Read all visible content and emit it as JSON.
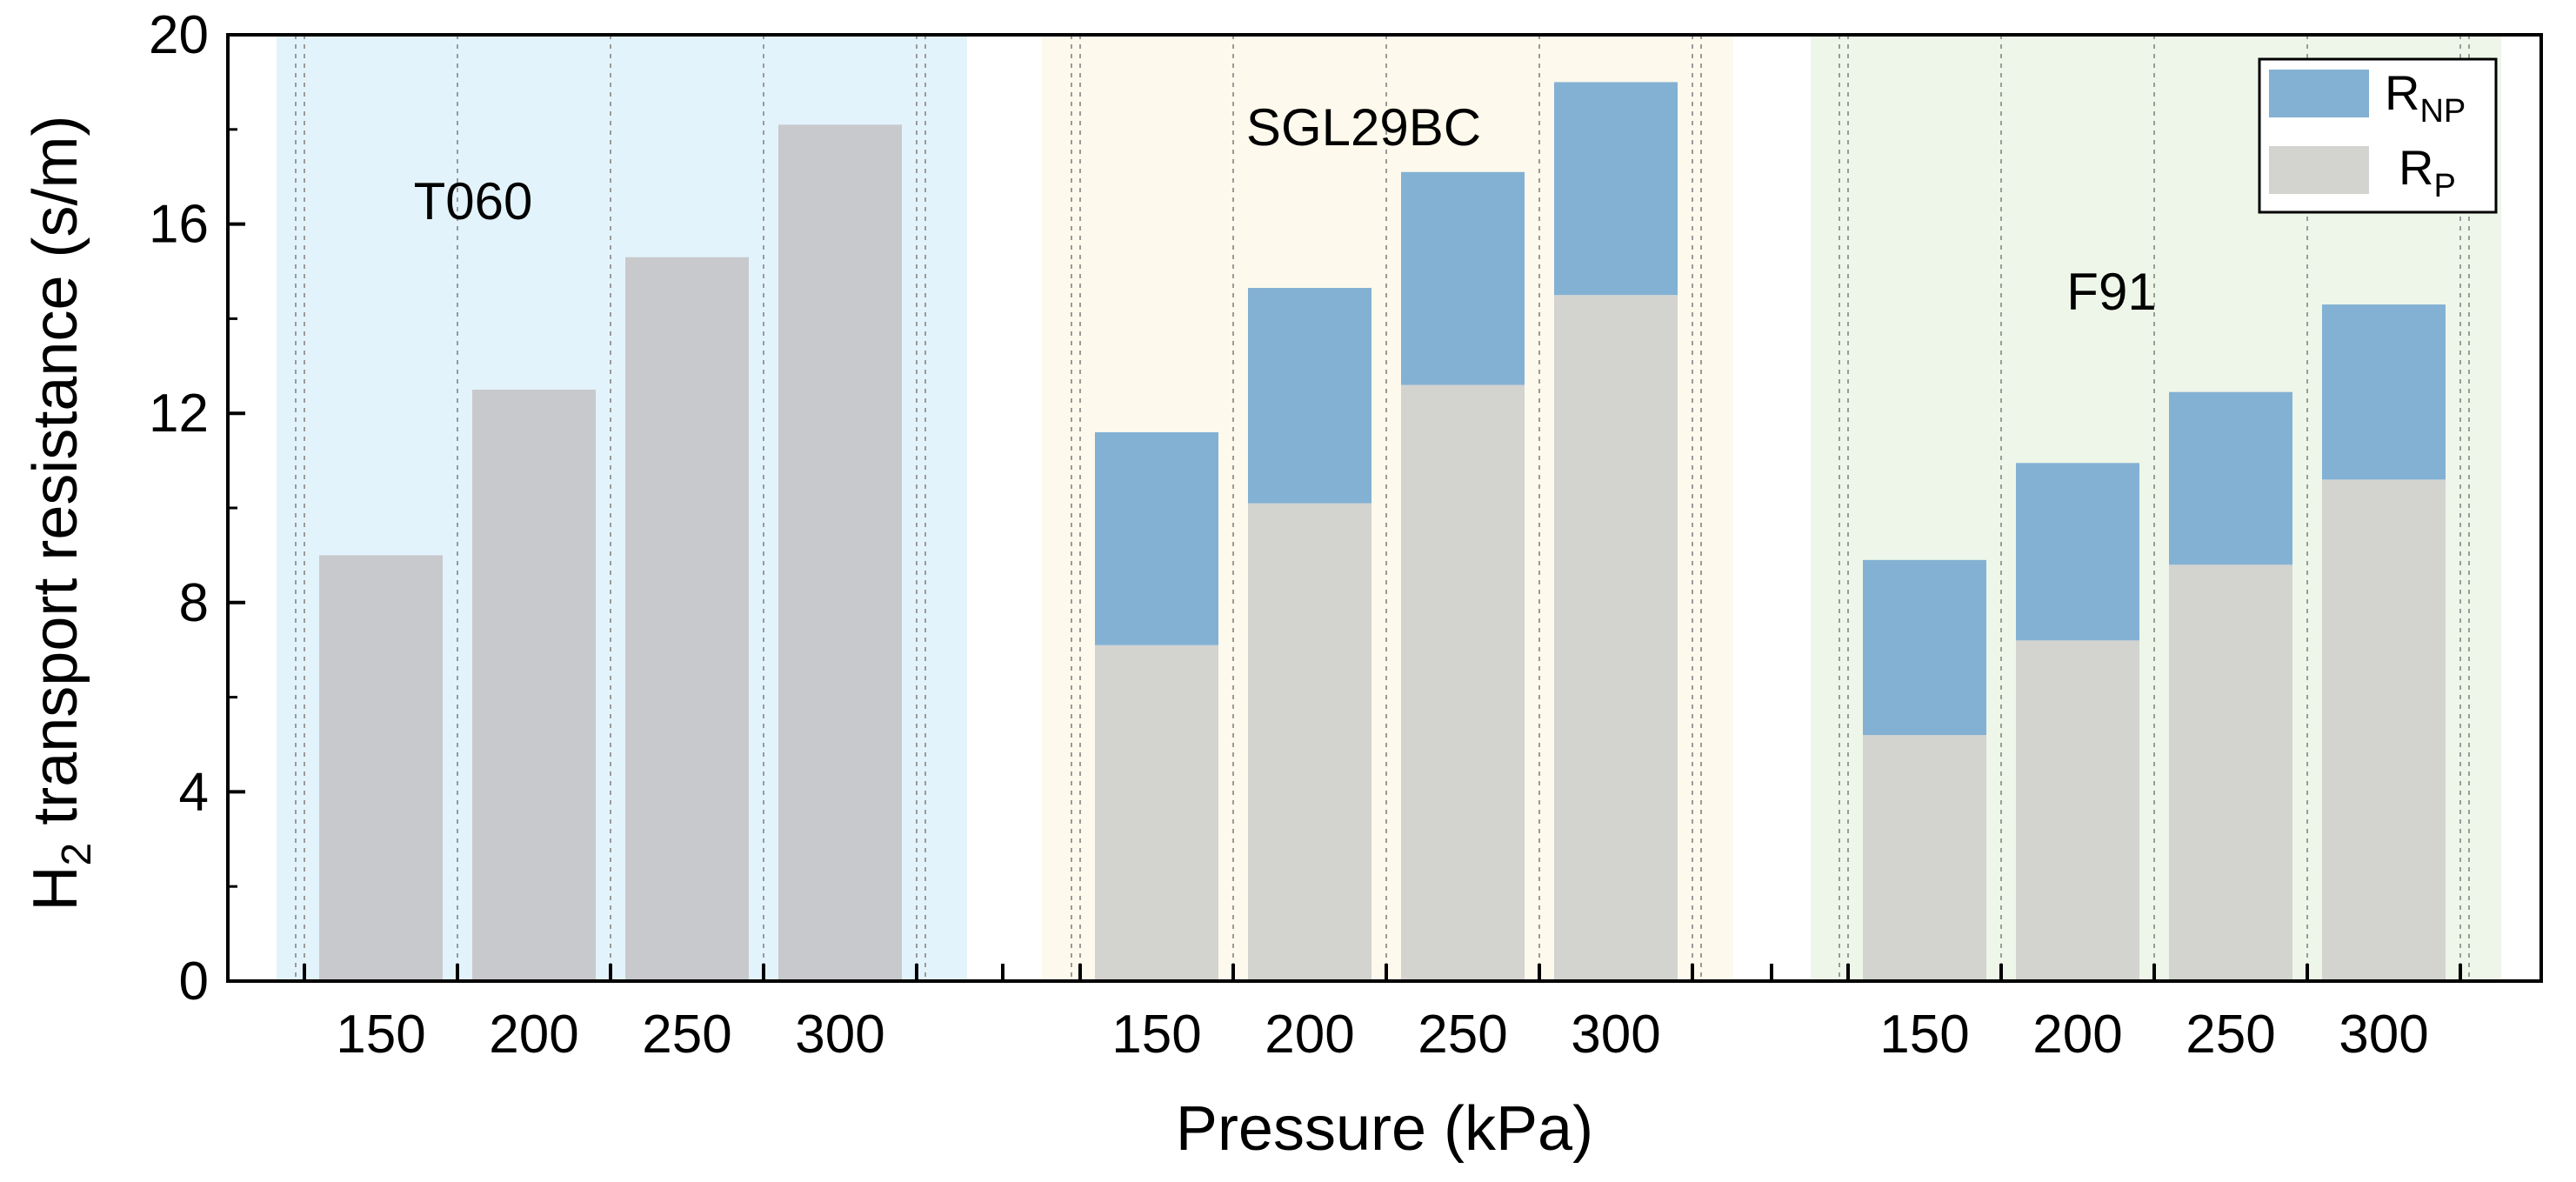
{
  "chart_data": {
    "type": "bar",
    "stacked": true,
    "xlabel": "Pressure (kPa)",
    "ylabel": "H2 transport resistance (s/m)",
    "ylabel_main": "H",
    "ylabel_sub": "2",
    "ylabel_rest": " transport resistance (s/m)",
    "ylim": [
      0,
      20
    ],
    "yticks": [
      "0",
      "4",
      "8",
      "12",
      "16",
      "20"
    ],
    "categories": [
      "150",
      "200",
      "250",
      "300"
    ],
    "groups": [
      {
        "name": "T060",
        "background": "#e3f3fc",
        "series": [
          {
            "name": "RP",
            "values": [
              9.0,
              12.5,
              15.3,
              18.1
            ]
          },
          {
            "name": "RNP",
            "values": [
              0,
              0,
              0,
              0
            ]
          }
        ]
      },
      {
        "name": "SGL29BC",
        "background": "#fdf9ec",
        "series": [
          {
            "name": "RP",
            "values": [
              7.1,
              10.1,
              12.6,
              14.5
            ]
          },
          {
            "name": "RNP",
            "values": [
              4.5,
              4.55,
              4.5,
              4.5
            ]
          }
        ]
      },
      {
        "name": "F91",
        "background": "#eef6e9",
        "series": [
          {
            "name": "RP",
            "values": [
              5.2,
              7.2,
              8.8,
              10.6
            ]
          },
          {
            "name": "RNP",
            "values": [
              3.7,
              3.75,
              3.65,
              3.7
            ]
          }
        ]
      }
    ],
    "legend": {
      "position": "top-right",
      "entries": [
        {
          "key": "RNP",
          "main": "R",
          "sub": "NP",
          "color": "#83b1d3"
        },
        {
          "key": "RP",
          "main": "R",
          "sub": "P",
          "color": "#d3d3d0"
        }
      ]
    },
    "colors": {
      "RP_group1": "#c8c9cc",
      "RP": "#d3d3d0",
      "RNP": "#83b1d3",
      "grid": "#9a9a9a",
      "axis": "#000000"
    }
  }
}
